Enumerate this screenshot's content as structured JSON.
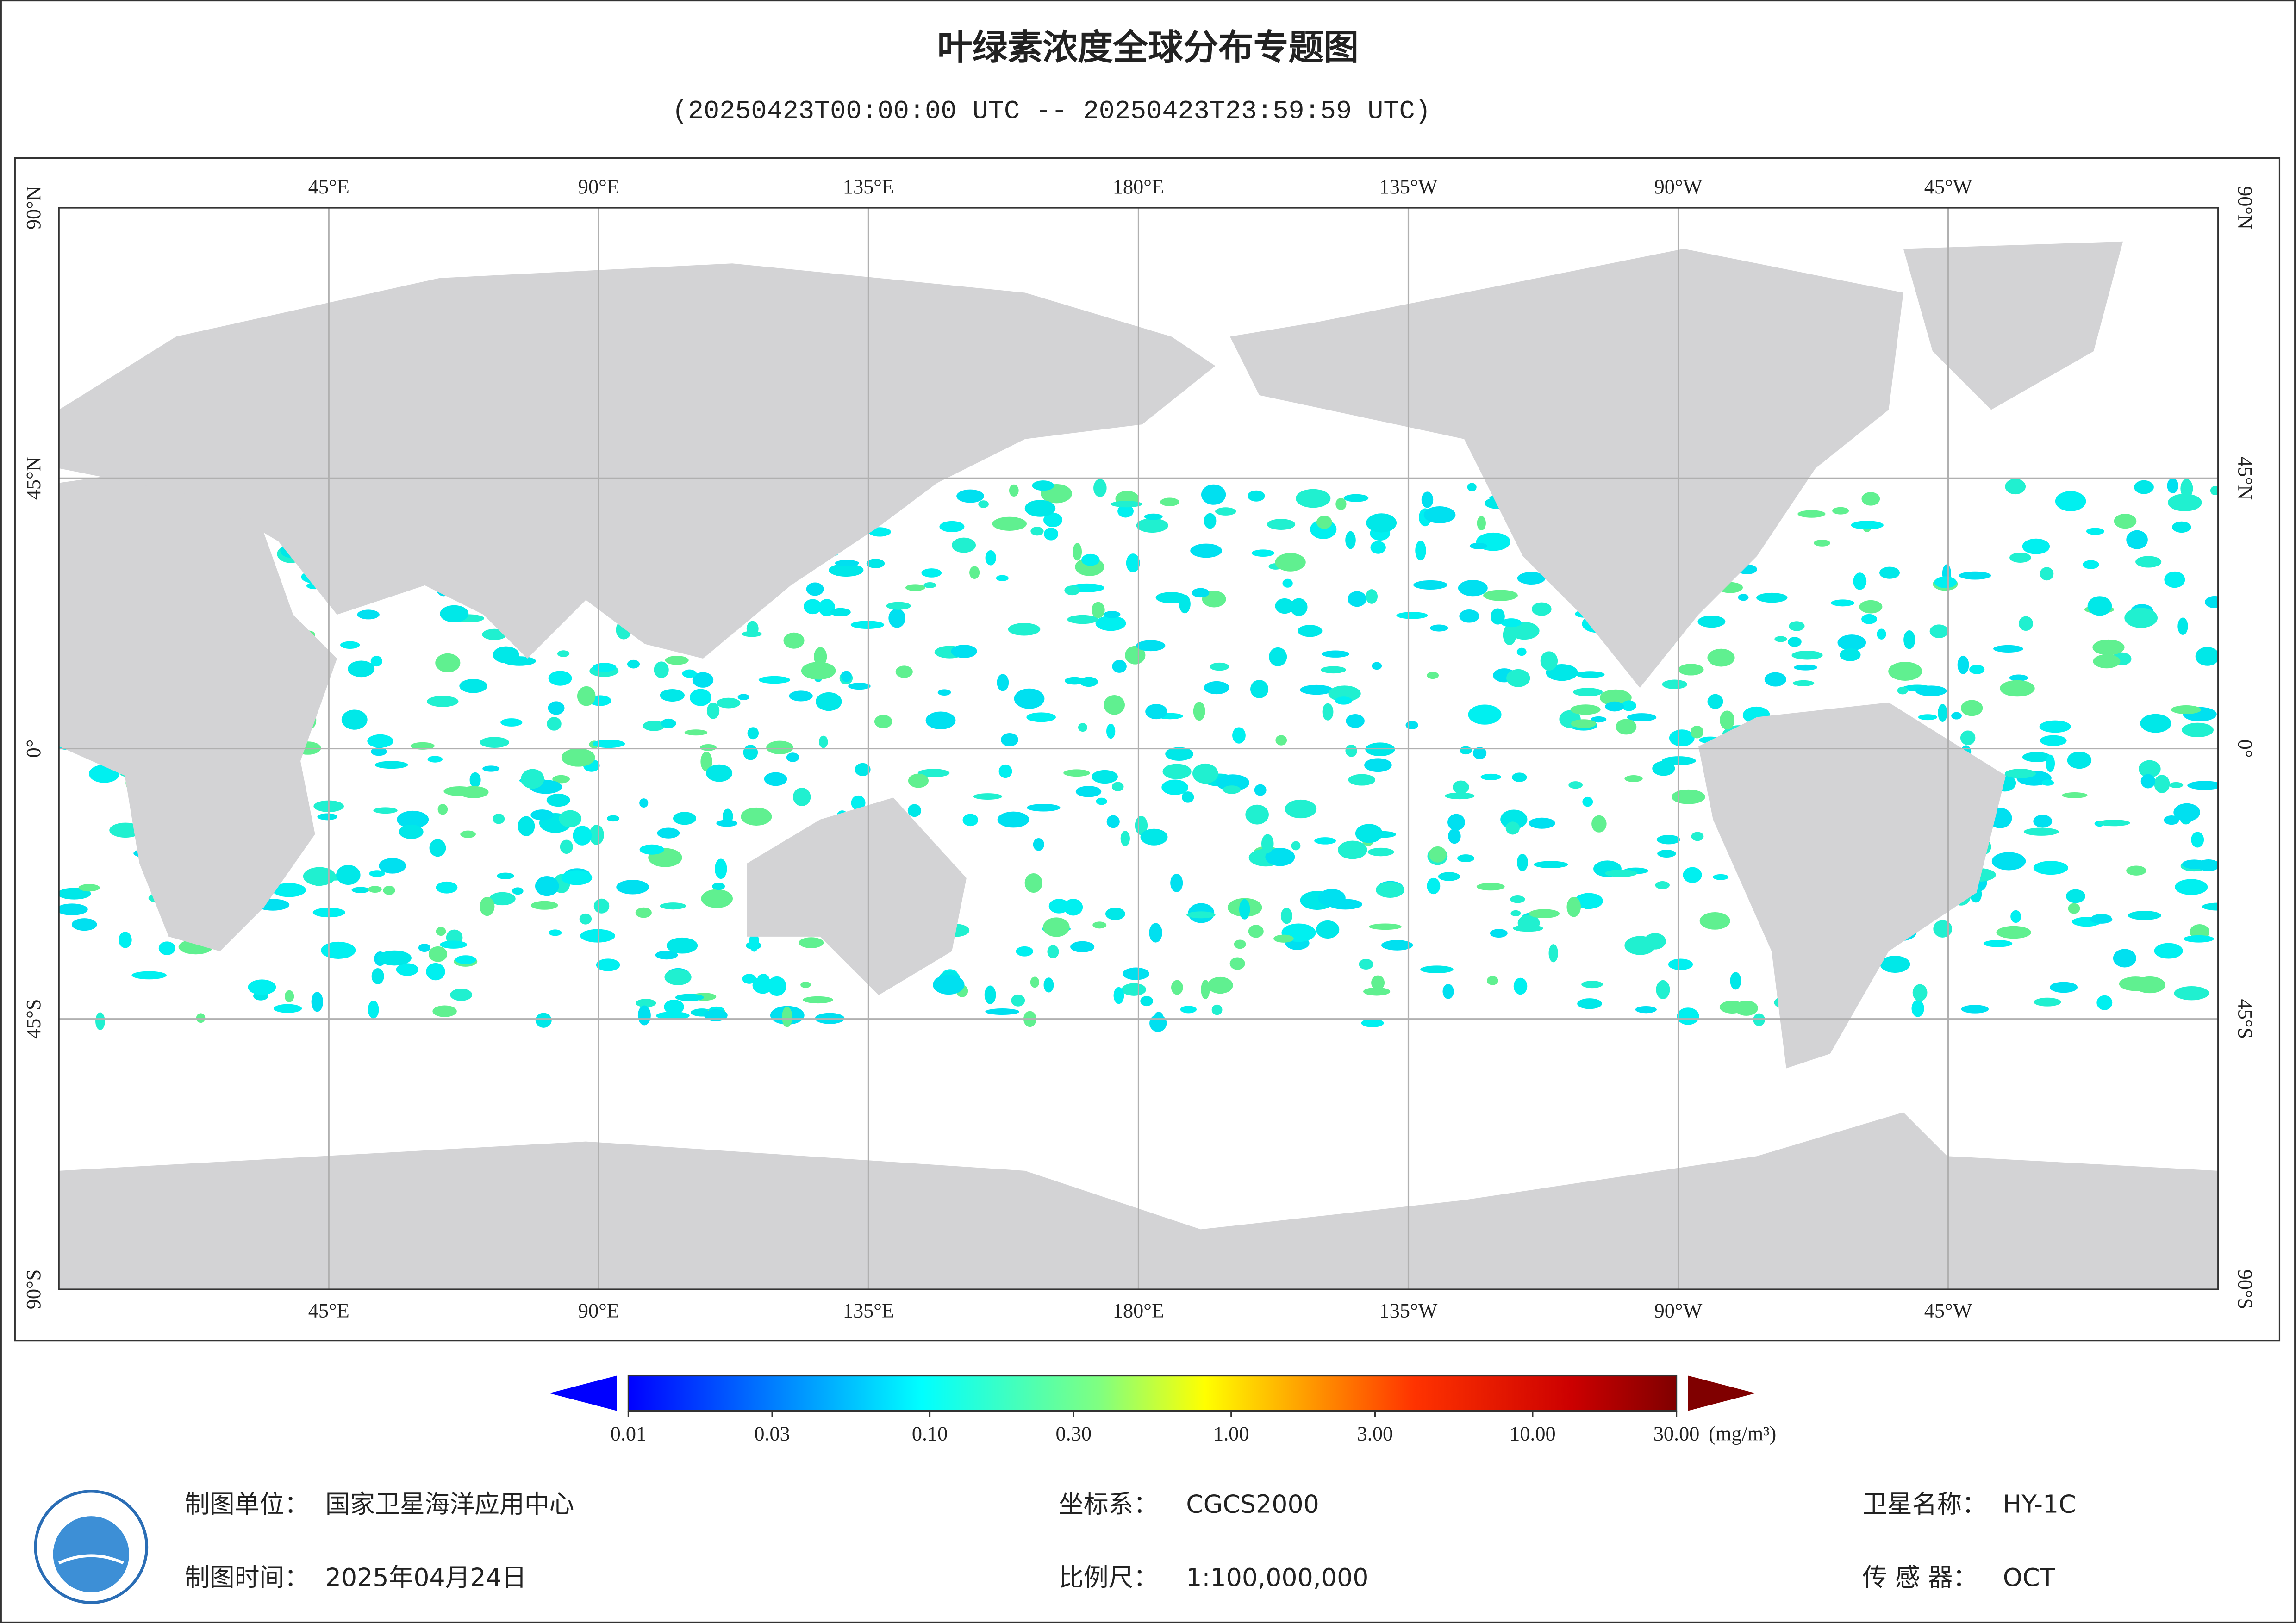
{
  "title": "叶绿素浓度全球分布专题图",
  "subtitle": "(20250423T00:00:00 UTC -- 20250423T23:59:59 UTC)",
  "map": {
    "lon_ticks": [
      {
        "value": 45,
        "label": "45°E"
      },
      {
        "value": 90,
        "label": "90°E"
      },
      {
        "value": 135,
        "label": "135°E"
      },
      {
        "value": 180,
        "label": "180°E"
      },
      {
        "value": 225,
        "label": "135°W"
      },
      {
        "value": 270,
        "label": "90°W"
      },
      {
        "value": 315,
        "label": "45°W"
      }
    ],
    "lat_ticks": [
      {
        "value": 90,
        "label": "90°N"
      },
      {
        "value": 45,
        "label": "45°N"
      },
      {
        "value": 0,
        "label": "0°"
      },
      {
        "value": -45,
        "label": "45°S"
      },
      {
        "value": -90,
        "label": "90°S"
      }
    ],
    "lon_range": [
      0,
      360
    ],
    "lat_range": [
      -90,
      90
    ]
  },
  "colorbar": {
    "range": [
      0.01,
      30
    ],
    "log_scale": true,
    "ticks": [
      {
        "value": 0.01,
        "label": "0.01"
      },
      {
        "value": 0.03,
        "label": "0.03"
      },
      {
        "value": 0.1,
        "label": "0.10"
      },
      {
        "value": 0.3,
        "label": "0.30"
      },
      {
        "value": 1,
        "label": "1.00"
      },
      {
        "value": 3,
        "label": "3.00"
      },
      {
        "value": 10,
        "label": "10.00"
      },
      {
        "value": 30,
        "label": "30.00"
      }
    ],
    "unit": "(mg/m³)"
  },
  "footer": {
    "unit_label": "制图单位：",
    "unit_value": "国家卫星海洋应用中心",
    "time_label": "制图时间：",
    "time_value": "2025年04月24日",
    "crs_label": "坐标系：",
    "crs_value": "CGCS2000",
    "scale_label": "比例尺：",
    "scale_value": "1:100,000,000",
    "satellite_label": "卫星名称：",
    "satellite_value": "HY-1C",
    "sensor_label": "传 感 器：",
    "sensor_value": "OCT"
  }
}
